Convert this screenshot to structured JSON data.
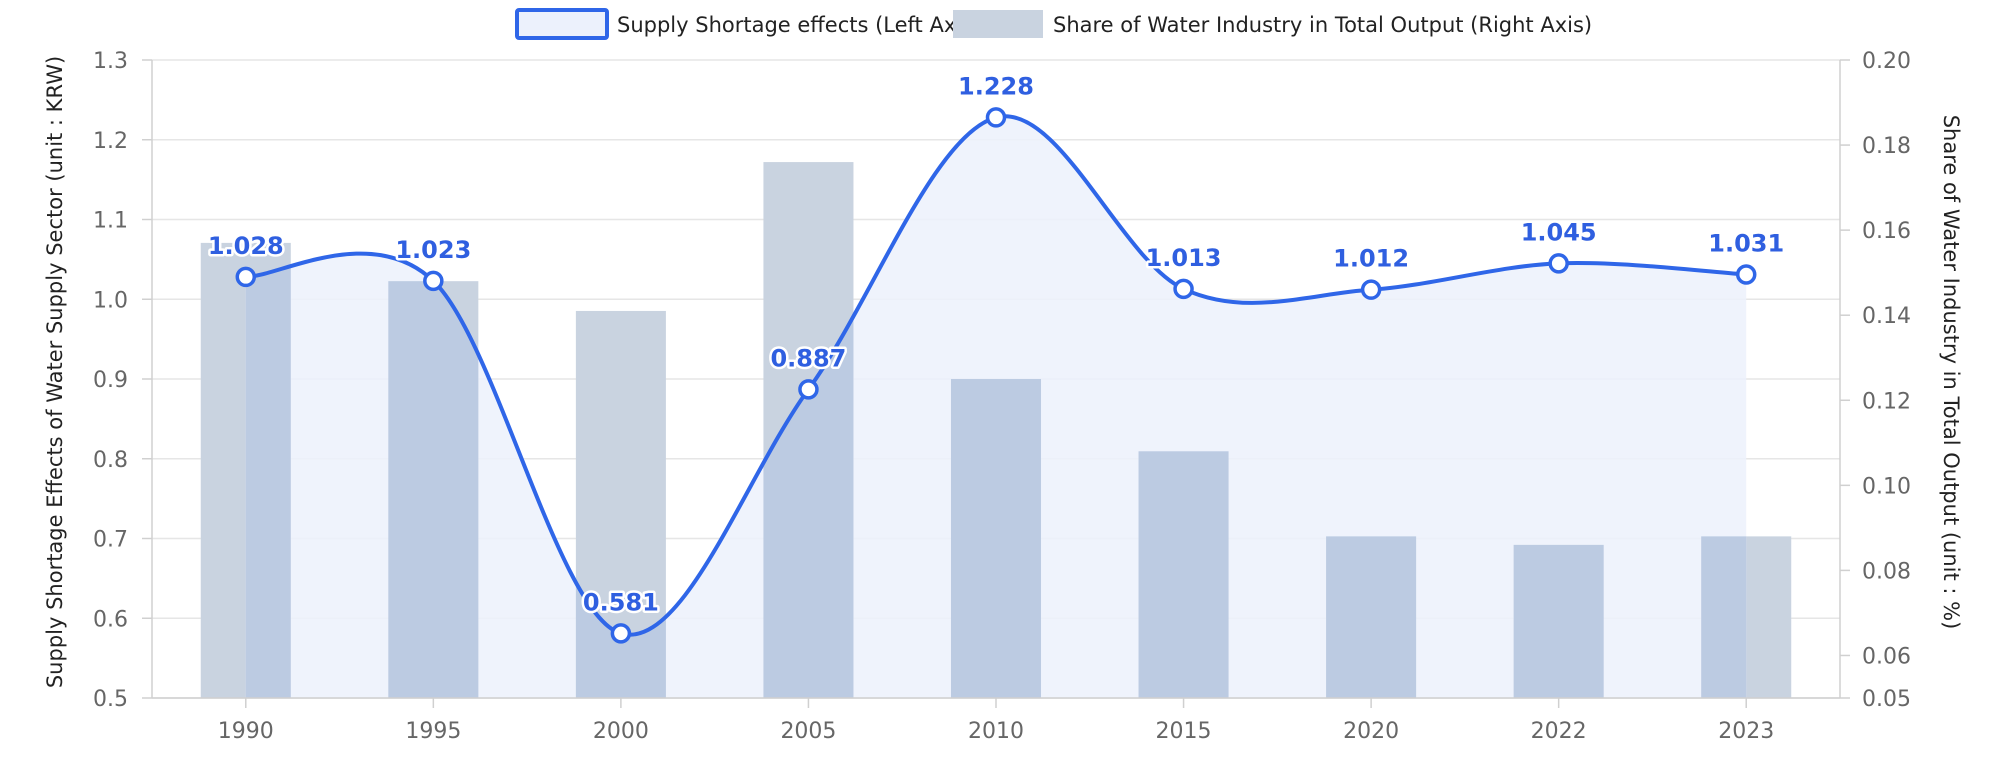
{
  "chart_data": {
    "type": "bar",
    "categories": [
      "1990",
      "1995",
      "2000",
      "2005",
      "2010",
      "2015",
      "2020",
      "2022",
      "2023"
    ],
    "series": [
      {
        "name": "Supply Shortage effects (Left Axis)",
        "type": "line",
        "axis": "left",
        "smooth": true,
        "area_fill": true,
        "values": [
          1.028,
          1.023,
          0.581,
          0.887,
          1.228,
          1.013,
          1.012,
          1.045,
          1.031
        ],
        "data_labels": [
          "1.028",
          "1.023",
          "0.581",
          "0.887",
          "1.228",
          "1.013",
          "1.012",
          "1.045",
          "1.031"
        ]
      },
      {
        "name": "Share of Water Industry in Total Output (Right Axis)",
        "type": "bar",
        "axis": "right",
        "values": [
          0.157,
          0.148,
          0.141,
          0.176,
          0.125,
          0.108,
          0.088,
          0.086,
          0.088
        ]
      }
    ],
    "ylabel": "Supply Shortage Effects of Water Supply Sector (unit : KRW)",
    "y2label": "Share of Water Industry in Total Output (unit : %)",
    "ylim": [
      0.5,
      1.3
    ],
    "y2lim": [
      0.05,
      0.2
    ],
    "y_ticks": [
      "0.5",
      "0.6",
      "0.7",
      "0.8",
      "0.9",
      "1.0",
      "1.1",
      "1.2",
      "1.3"
    ],
    "y2_ticks": [
      "0.05",
      "0.06",
      "0.08",
      "0.10",
      "0.12",
      "0.14",
      "0.16",
      "0.18",
      "0.20"
    ],
    "grid": true,
    "legend_position": "top-center",
    "colors": {
      "line": "#2f66e8",
      "area": "#ecf1fc",
      "bar": "#c9d3e0",
      "bar_overlap": "#bccbe2",
      "label": "#2f5fe0"
    }
  }
}
